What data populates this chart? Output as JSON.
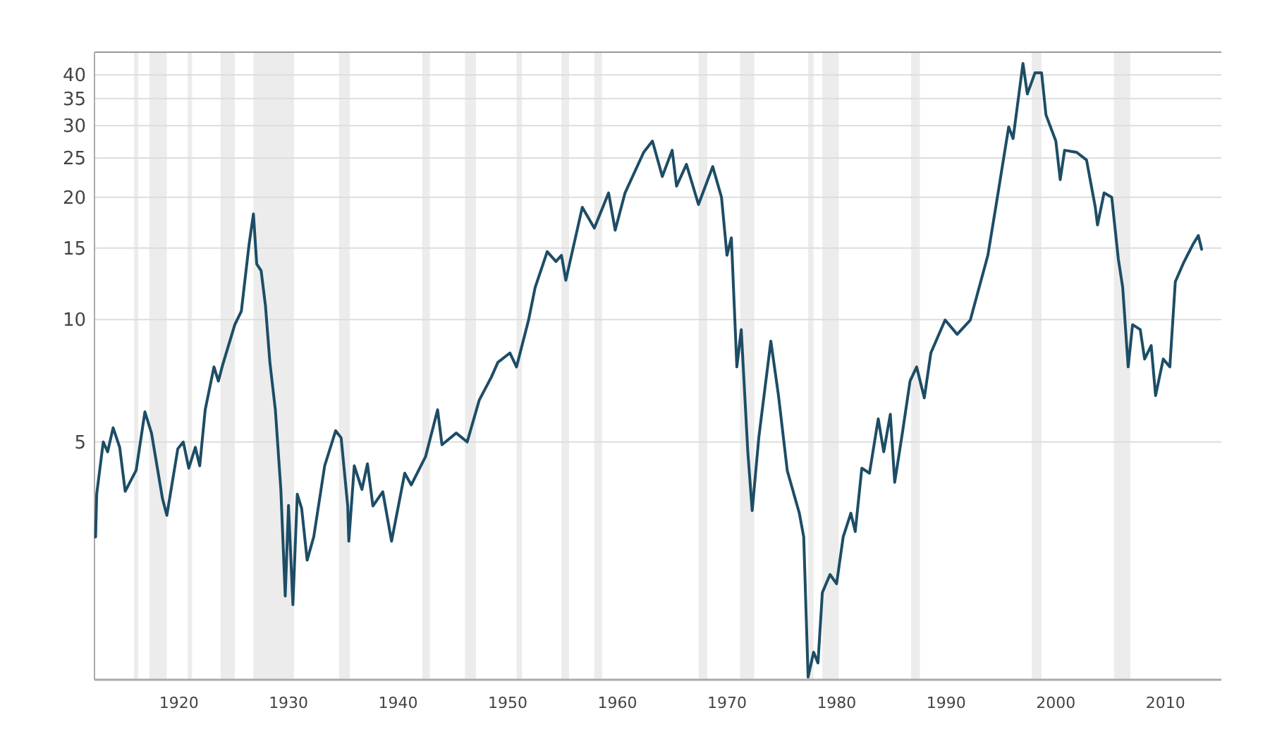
{
  "chart_data": {
    "type": "line",
    "log": "y",
    "grid": "y",
    "xlim": [
      1912.3,
      2015.1
    ],
    "ylim": [
      1.3,
      45.5
    ],
    "xticks": [
      1920,
      1930,
      1940,
      1950,
      1960,
      1970,
      1980,
      1990,
      2000,
      2010
    ],
    "yticks": [
      5,
      10,
      15,
      20,
      25,
      30,
      35,
      40
    ],
    "bands": [
      {
        "axis": "x",
        "from": 1915.9,
        "to": 1916.3,
        "color": "#ececec"
      },
      {
        "axis": "x",
        "from": 1917.3,
        "to": 1918.9,
        "color": "#ececec"
      },
      {
        "axis": "x",
        "from": 1920.8,
        "to": 1921.2,
        "color": "#ececec"
      },
      {
        "axis": "x",
        "from": 1923.8,
        "to": 1925.1,
        "color": "#ececec"
      },
      {
        "axis": "x",
        "from": 1926.8,
        "to": 1930.5,
        "color": "#ececec"
      },
      {
        "axis": "x",
        "from": 1934.6,
        "to": 1935.6,
        "color": "#ececec"
      },
      {
        "axis": "x",
        "from": 1942.2,
        "to": 1942.9,
        "color": "#ececec"
      },
      {
        "axis": "x",
        "from": 1946.1,
        "to": 1947.1,
        "color": "#ececec"
      },
      {
        "axis": "x",
        "from": 1950.8,
        "to": 1951.3,
        "color": "#ececec"
      },
      {
        "axis": "x",
        "from": 1954.9,
        "to": 1955.6,
        "color": "#ececec"
      },
      {
        "axis": "x",
        "from": 1957.9,
        "to": 1958.6,
        "color": "#ececec"
      },
      {
        "axis": "x",
        "from": 1967.4,
        "to": 1968.2,
        "color": "#ececec"
      },
      {
        "axis": "x",
        "from": 1971.2,
        "to": 1972.5,
        "color": "#ececec"
      },
      {
        "axis": "x",
        "from": 1977.4,
        "to": 1977.9,
        "color": "#ececec"
      },
      {
        "axis": "x",
        "from": 1978.7,
        "to": 1980.2,
        "color": "#ececec"
      },
      {
        "axis": "x",
        "from": 1986.8,
        "to": 1987.6,
        "color": "#ececec"
      },
      {
        "axis": "x",
        "from": 1997.8,
        "to": 1998.7,
        "color": "#ececec"
      },
      {
        "axis": "x",
        "from": 2005.3,
        "to": 2006.8,
        "color": "#ececec"
      }
    ],
    "series": [
      {
        "color": "#1d4d66",
        "line_style": "solid",
        "x": [
          1912.4,
          1912.5,
          1913.1,
          1913.5,
          1914.0,
          1914.6,
          1915.1,
          1916.1,
          1916.9,
          1917.5,
          1918.5,
          1918.9,
          1919.9,
          1920.4,
          1920.9,
          1921.5,
          1921.9,
          1922.4,
          1923.2,
          1923.6,
          1924.0,
          1925.1,
          1925.7,
          1926.4,
          1926.8,
          1927.1,
          1927.5,
          1927.9,
          1928.3,
          1928.8,
          1929.3,
          1929.7,
          1930.0,
          1930.4,
          1930.8,
          1931.2,
          1931.7,
          1932.3,
          1933.3,
          1934.3,
          1934.8,
          1935.4,
          1935.5,
          1936.0,
          1936.7,
          1937.2,
          1937.7,
          1938.6,
          1939.4,
          1940.6,
          1941.2,
          1942.5,
          1943.6,
          1944.0,
          1945.3,
          1946.3,
          1947.4,
          1948.5,
          1949.1,
          1950.2,
          1950.8,
          1951.9,
          1952.5,
          1953.6,
          1954.4,
          1954.9,
          1955.3,
          1956.8,
          1957.9,
          1959.2,
          1959.8,
          1960.7,
          1962.4,
          1963.2,
          1964.1,
          1965.0,
          1965.4,
          1966.3,
          1967.4,
          1968.7,
          1969.5,
          1970.0,
          1970.4,
          1970.9,
          1971.3,
          1971.9,
          1972.3,
          1972.9,
          1974.0,
          1974.7,
          1975.5,
          1976.6,
          1977.0,
          1977.4,
          1977.9,
          1978.3,
          1978.7,
          1979.4,
          1980.0,
          1980.6,
          1981.3,
          1981.7,
          1982.3,
          1983.0,
          1983.8,
          1984.3,
          1984.9,
          1985.3,
          1986.0,
          1986.7,
          1987.3,
          1988.0,
          1988.6,
          1989.9,
          1991.0,
          1992.2,
          1993.8,
          1994.6,
          1995.7,
          1996.1,
          1997.0,
          1997.4,
          1998.1,
          1998.7,
          1999.1,
          2000.0,
          2000.4,
          2000.8,
          2001.9,
          2002.8,
          2003.6,
          2003.8,
          2004.4,
          2005.1,
          2005.7,
          2006.1,
          2006.6,
          2007.0,
          2007.7,
          2008.1,
          2008.7,
          2009.1,
          2009.8,
          2010.4,
          2010.9,
          2011.6,
          2012.0,
          2012.5,
          2013.0,
          2013.3
        ],
        "values": [
          2.92,
          3.72,
          5.0,
          4.73,
          5.42,
          4.85,
          3.78,
          4.26,
          5.93,
          5.26,
          3.63,
          3.3,
          4.81,
          5.0,
          4.31,
          4.85,
          4.37,
          6.0,
          7.65,
          7.06,
          7.75,
          9.72,
          10.5,
          15.3,
          18.2,
          13.7,
          13.2,
          10.8,
          7.85,
          6.0,
          3.82,
          2.09,
          3.49,
          1.99,
          3.72,
          3.43,
          2.56,
          2.92,
          4.37,
          5.33,
          5.12,
          3.48,
          2.85,
          4.37,
          3.82,
          4.42,
          3.48,
          3.77,
          2.85,
          4.19,
          3.92,
          4.6,
          6.0,
          4.92,
          5.26,
          5.0,
          6.34,
          7.22,
          7.85,
          8.28,
          7.65,
          9.98,
          12.0,
          14.7,
          13.9,
          14.4,
          12.5,
          18.9,
          16.8,
          20.5,
          16.6,
          20.5,
          25.8,
          27.5,
          22.5,
          26.1,
          21.3,
          24.1,
          19.2,
          23.8,
          20.0,
          14.4,
          15.9,
          7.65,
          9.45,
          4.73,
          3.39,
          5.12,
          8.85,
          6.5,
          4.25,
          3.34,
          2.92,
          1.32,
          1.52,
          1.43,
          2.13,
          2.36,
          2.24,
          2.92,
          3.34,
          3.01,
          4.31,
          4.19,
          5.7,
          4.73,
          5.85,
          3.98,
          5.26,
          7.06,
          7.65,
          6.42,
          8.28,
          9.98,
          9.2,
          9.98,
          14.4,
          19.5,
          29.8,
          27.9,
          42.7,
          35.9,
          40.5,
          40.5,
          31.9,
          27.5,
          22.1,
          26.1,
          25.8,
          24.7,
          18.9,
          17.1,
          20.5,
          20.0,
          14.1,
          12.0,
          7.65,
          9.72,
          9.45,
          8.0,
          8.63,
          6.5,
          8.0,
          7.65,
          12.4,
          13.7,
          14.4,
          15.3,
          16.1,
          14.9
        ]
      }
    ]
  }
}
